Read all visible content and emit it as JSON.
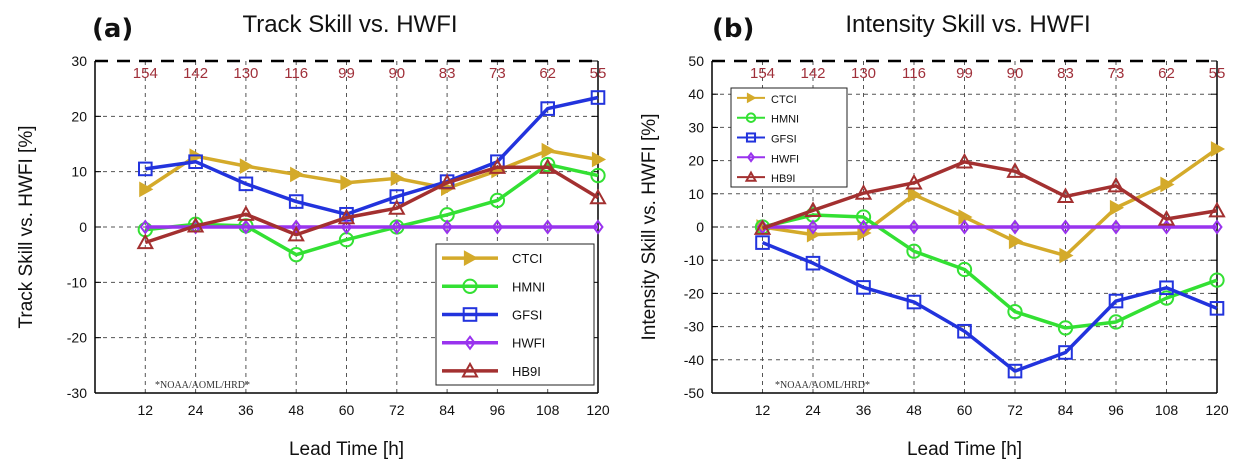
{
  "chart_data": [
    {
      "type": "line",
      "panel_label": "(a)",
      "title": "Track Skill vs. HWFI",
      "xlabel": "Lead Time [h]",
      "ylabel": "Track Skill vs. HWFI [%]",
      "x": [
        12,
        24,
        36,
        48,
        60,
        72,
        84,
        96,
        108,
        120
      ],
      "xlim": [
        0,
        120
      ],
      "ylim": [
        -30,
        30
      ],
      "yticks": [
        -30,
        -20,
        -10,
        0,
        10,
        20,
        30
      ],
      "counts": [
        154,
        142,
        130,
        116,
        99,
        90,
        83,
        73,
        62,
        55
      ],
      "grid": true,
      "legend_position": "lower-right",
      "watermark": "*NOAA/AOML/HRD*",
      "series": [
        {
          "name": "CTCI",
          "color": "#d4aa2a",
          "marker": "triangle-right",
          "values": [
            6.8,
            12.8,
            11.0,
            9.5,
            8.0,
            8.8,
            7.0,
            10.2,
            13.8,
            12.2
          ]
        },
        {
          "name": "HMNI",
          "color": "#33e033",
          "marker": "circle",
          "values": [
            -0.5,
            0.5,
            0.2,
            -5.0,
            -2.3,
            0.0,
            2.2,
            4.8,
            11.3,
            9.3
          ]
        },
        {
          "name": "GFSI",
          "color": "#2233dd",
          "marker": "square",
          "values": [
            10.5,
            11.8,
            7.8,
            4.6,
            2.3,
            5.5,
            8.2,
            11.8,
            21.4,
            23.4
          ]
        },
        {
          "name": "HWFI",
          "color": "#9933ee",
          "marker": "diamond",
          "values": [
            0,
            0,
            0,
            0,
            0,
            0,
            0,
            0,
            0,
            0
          ]
        },
        {
          "name": "HB9I",
          "color": "#a33030",
          "marker": "triangle-up",
          "values": [
            -2.8,
            0.2,
            2.3,
            -1.4,
            1.7,
            3.4,
            8.0,
            10.8,
            10.8,
            5.3
          ]
        }
      ]
    },
    {
      "type": "line",
      "panel_label": "(b)",
      "title": "Intensity Skill vs. HWFI",
      "xlabel": "Lead Time [h]",
      "ylabel": "Intensity Skill vs. HWFI [%]",
      "x": [
        12,
        24,
        36,
        48,
        60,
        72,
        84,
        96,
        108,
        120
      ],
      "xlim": [
        0,
        120
      ],
      "ylim": [
        -50,
        50
      ],
      "yticks": [
        -50,
        -40,
        -30,
        -20,
        -10,
        0,
        10,
        20,
        30,
        40,
        50
      ],
      "counts": [
        154,
        142,
        130,
        116,
        99,
        90,
        83,
        73,
        62,
        55
      ],
      "grid": true,
      "legend_position": "upper-left",
      "watermark": "*NOAA/AOML/HRD*",
      "series": [
        {
          "name": "CTCI",
          "color": "#d4aa2a",
          "marker": "triangle-right",
          "values": [
            0.0,
            -2.3,
            -1.8,
            9.7,
            3.0,
            -4.3,
            -8.6,
            5.8,
            12.8,
            23.5
          ]
        },
        {
          "name": "HMNI",
          "color": "#33e033",
          "marker": "circle",
          "values": [
            0.0,
            3.6,
            3.0,
            -7.3,
            -12.8,
            -25.5,
            -30.4,
            -28.6,
            -21.4,
            -16.0
          ]
        },
        {
          "name": "GFSI",
          "color": "#2233dd",
          "marker": "square",
          "values": [
            -4.7,
            -10.9,
            -18.2,
            -22.6,
            -31.4,
            -43.4,
            -37.8,
            -22.3,
            -18.3,
            -24.5
          ]
        },
        {
          "name": "HWFI",
          "color": "#9933ee",
          "marker": "diamond",
          "values": [
            0,
            0,
            0,
            0,
            0,
            0,
            0,
            0,
            0,
            0
          ]
        },
        {
          "name": "HB9I",
          "color": "#a33030",
          "marker": "triangle-up",
          "values": [
            -0.4,
            5.0,
            10.2,
            13.3,
            19.6,
            16.8,
            9.2,
            12.4,
            2.4,
            4.9
          ]
        }
      ]
    }
  ]
}
